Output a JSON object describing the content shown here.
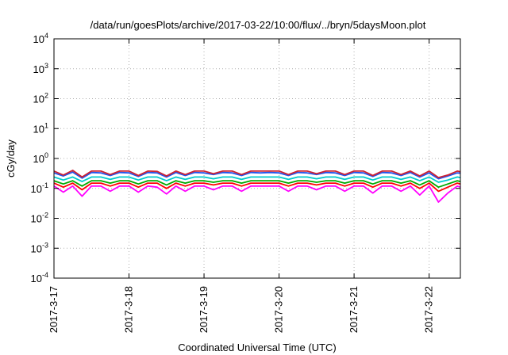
{
  "chart_data": {
    "type": "line",
    "title": "/data/run/goesPlots/archive/2017-03-22/10:00/flux/../bryn/5daysMoon.plot",
    "xlabel": "Coordinated Universal Time (UTC)",
    "ylabel": "cGy/day",
    "yscale": "log",
    "ylim": [
      0.0001,
      10000
    ],
    "y_ticks": [
      {
        "value": 0.0001,
        "base": "10",
        "exp": "-4"
      },
      {
        "value": 0.001,
        "base": "10",
        "exp": "-3"
      },
      {
        "value": 0.01,
        "base": "10",
        "exp": "-2"
      },
      {
        "value": 0.1,
        "base": "10",
        "exp": "-1"
      },
      {
        "value": 1,
        "base": "10",
        "exp": "0"
      },
      {
        "value": 10,
        "base": "10",
        "exp": "1"
      },
      {
        "value": 100,
        "base": "10",
        "exp": "2"
      },
      {
        "value": 1000,
        "base": "10",
        "exp": "3"
      },
      {
        "value": 10000,
        "base": "10",
        "exp": "4"
      }
    ],
    "xlim": [
      "2017-03-17T00:00",
      "2017-03-22T10:00"
    ],
    "x_ticks": [
      {
        "value": "2017-03-17T00:00",
        "label": "2017-3-17"
      },
      {
        "value": "2017-03-18T00:00",
        "label": "2017-3-18"
      },
      {
        "value": "2017-03-19T00:00",
        "label": "2017-3-19"
      },
      {
        "value": "2017-03-20T00:00",
        "label": "2017-3-20"
      },
      {
        "value": "2017-03-21T00:00",
        "label": "2017-3-21"
      },
      {
        "value": "2017-03-22T00:00",
        "label": "2017-3-22"
      }
    ],
    "grid": true,
    "legend": "none",
    "series": [
      {
        "color": "#ff00ff",
        "x": [
          "2017-03-17T00:00",
          "2017-03-17T03:00",
          "2017-03-17T06:00",
          "2017-03-17T09:00",
          "2017-03-17T12:00",
          "2017-03-17T15:00",
          "2017-03-17T18:00",
          "2017-03-17T21:00",
          "2017-03-18T00:00",
          "2017-03-18T03:00",
          "2017-03-18T06:00",
          "2017-03-18T09:00",
          "2017-03-18T12:00",
          "2017-03-18T15:00",
          "2017-03-18T18:00",
          "2017-03-18T21:00",
          "2017-03-19T00:00",
          "2017-03-19T03:00",
          "2017-03-19T06:00",
          "2017-03-19T09:00",
          "2017-03-19T12:00",
          "2017-03-19T15:00",
          "2017-03-19T18:00",
          "2017-03-19T21:00",
          "2017-03-20T00:00",
          "2017-03-20T03:00",
          "2017-03-20T06:00",
          "2017-03-20T09:00",
          "2017-03-20T12:00",
          "2017-03-20T15:00",
          "2017-03-20T18:00",
          "2017-03-20T21:00",
          "2017-03-21T00:00",
          "2017-03-21T03:00",
          "2017-03-21T06:00",
          "2017-03-21T09:00",
          "2017-03-21T12:00",
          "2017-03-21T15:00",
          "2017-03-21T18:00",
          "2017-03-21T21:00",
          "2017-03-22T00:00",
          "2017-03-22T03:00",
          "2017-03-22T06:00",
          "2017-03-22T09:00",
          "2017-03-22T10:00"
        ],
        "values": [
          0.12,
          0.075,
          0.12,
          0.055,
          0.12,
          0.12,
          0.08,
          0.12,
          0.12,
          0.075,
          0.12,
          0.11,
          0.065,
          0.12,
          0.08,
          0.12,
          0.12,
          0.09,
          0.12,
          0.12,
          0.08,
          0.12,
          0.12,
          0.12,
          0.12,
          0.08,
          0.12,
          0.12,
          0.09,
          0.12,
          0.12,
          0.08,
          0.12,
          0.12,
          0.07,
          0.12,
          0.12,
          0.08,
          0.12,
          0.06,
          0.12,
          0.035,
          0.07,
          0.12,
          0.11
        ]
      },
      {
        "color": "#ff0000",
        "x": [
          "2017-03-17T00:00",
          "2017-03-17T03:00",
          "2017-03-17T06:00",
          "2017-03-17T09:00",
          "2017-03-17T12:00",
          "2017-03-17T15:00",
          "2017-03-17T18:00",
          "2017-03-17T21:00",
          "2017-03-18T00:00",
          "2017-03-18T03:00",
          "2017-03-18T06:00",
          "2017-03-18T09:00",
          "2017-03-18T12:00",
          "2017-03-18T15:00",
          "2017-03-18T18:00",
          "2017-03-18T21:00",
          "2017-03-19T00:00",
          "2017-03-19T03:00",
          "2017-03-19T06:00",
          "2017-03-19T09:00",
          "2017-03-19T12:00",
          "2017-03-19T15:00",
          "2017-03-19T18:00",
          "2017-03-19T21:00",
          "2017-03-20T00:00",
          "2017-03-20T03:00",
          "2017-03-20T06:00",
          "2017-03-20T09:00",
          "2017-03-20T12:00",
          "2017-03-20T15:00",
          "2017-03-20T18:00",
          "2017-03-20T21:00",
          "2017-03-21T00:00",
          "2017-03-21T03:00",
          "2017-03-21T06:00",
          "2017-03-21T09:00",
          "2017-03-21T12:00",
          "2017-03-21T15:00",
          "2017-03-21T18:00",
          "2017-03-21T21:00",
          "2017-03-22T00:00",
          "2017-03-22T03:00",
          "2017-03-22T06:00",
          "2017-03-22T09:00",
          "2017-03-22T10:00"
        ],
        "values": [
          0.15,
          0.11,
          0.15,
          0.09,
          0.15,
          0.15,
          0.12,
          0.15,
          0.15,
          0.11,
          0.15,
          0.15,
          0.1,
          0.15,
          0.12,
          0.15,
          0.15,
          0.13,
          0.15,
          0.15,
          0.12,
          0.15,
          0.15,
          0.15,
          0.15,
          0.12,
          0.15,
          0.15,
          0.13,
          0.15,
          0.15,
          0.12,
          0.15,
          0.15,
          0.11,
          0.15,
          0.15,
          0.12,
          0.15,
          0.1,
          0.15,
          0.08,
          0.11,
          0.15,
          0.14
        ]
      },
      {
        "color": "#00aa00",
        "x": [
          "2017-03-17T00:00",
          "2017-03-17T03:00",
          "2017-03-17T06:00",
          "2017-03-17T09:00",
          "2017-03-17T12:00",
          "2017-03-17T15:00",
          "2017-03-17T18:00",
          "2017-03-17T21:00",
          "2017-03-18T00:00",
          "2017-03-18T03:00",
          "2017-03-18T06:00",
          "2017-03-18T09:00",
          "2017-03-18T12:00",
          "2017-03-18T15:00",
          "2017-03-18T18:00",
          "2017-03-18T21:00",
          "2017-03-19T00:00",
          "2017-03-19T03:00",
          "2017-03-19T06:00",
          "2017-03-19T09:00",
          "2017-03-19T12:00",
          "2017-03-19T15:00",
          "2017-03-19T18:00",
          "2017-03-19T21:00",
          "2017-03-20T00:00",
          "2017-03-20T03:00",
          "2017-03-20T06:00",
          "2017-03-20T09:00",
          "2017-03-20T12:00",
          "2017-03-20T15:00",
          "2017-03-20T18:00",
          "2017-03-20T21:00",
          "2017-03-21T00:00",
          "2017-03-21T03:00",
          "2017-03-21T06:00",
          "2017-03-21T09:00",
          "2017-03-21T12:00",
          "2017-03-21T15:00",
          "2017-03-21T18:00",
          "2017-03-21T21:00",
          "2017-03-22T00:00",
          "2017-03-22T03:00",
          "2017-03-22T06:00",
          "2017-03-22T09:00",
          "2017-03-22T10:00"
        ],
        "values": [
          0.18,
          0.14,
          0.18,
          0.12,
          0.18,
          0.18,
          0.15,
          0.18,
          0.18,
          0.14,
          0.18,
          0.18,
          0.13,
          0.18,
          0.15,
          0.18,
          0.18,
          0.16,
          0.18,
          0.18,
          0.15,
          0.18,
          0.18,
          0.18,
          0.18,
          0.15,
          0.18,
          0.18,
          0.16,
          0.18,
          0.18,
          0.15,
          0.18,
          0.18,
          0.14,
          0.18,
          0.18,
          0.15,
          0.18,
          0.13,
          0.18,
          0.11,
          0.14,
          0.18,
          0.17
        ]
      },
      {
        "color": "#00cccc",
        "x": [
          "2017-03-17T00:00",
          "2017-03-17T03:00",
          "2017-03-17T06:00",
          "2017-03-17T09:00",
          "2017-03-17T12:00",
          "2017-03-17T15:00",
          "2017-03-17T18:00",
          "2017-03-17T21:00",
          "2017-03-18T00:00",
          "2017-03-18T03:00",
          "2017-03-18T06:00",
          "2017-03-18T09:00",
          "2017-03-18T12:00",
          "2017-03-18T15:00",
          "2017-03-18T18:00",
          "2017-03-18T21:00",
          "2017-03-19T00:00",
          "2017-03-19T03:00",
          "2017-03-19T06:00",
          "2017-03-19T09:00",
          "2017-03-19T12:00",
          "2017-03-19T15:00",
          "2017-03-19T18:00",
          "2017-03-19T21:00",
          "2017-03-20T00:00",
          "2017-03-20T03:00",
          "2017-03-20T06:00",
          "2017-03-20T09:00",
          "2017-03-20T12:00",
          "2017-03-20T15:00",
          "2017-03-20T18:00",
          "2017-03-20T21:00",
          "2017-03-21T00:00",
          "2017-03-21T03:00",
          "2017-03-21T06:00",
          "2017-03-21T09:00",
          "2017-03-21T12:00",
          "2017-03-21T15:00",
          "2017-03-21T18:00",
          "2017-03-21T21:00",
          "2017-03-22T00:00",
          "2017-03-22T03:00",
          "2017-03-22T06:00",
          "2017-03-22T09:00",
          "2017-03-22T10:00"
        ],
        "values": [
          0.24,
          0.19,
          0.24,
          0.17,
          0.24,
          0.24,
          0.2,
          0.24,
          0.24,
          0.19,
          0.24,
          0.24,
          0.18,
          0.24,
          0.2,
          0.24,
          0.24,
          0.21,
          0.24,
          0.24,
          0.2,
          0.24,
          0.24,
          0.24,
          0.24,
          0.2,
          0.24,
          0.24,
          0.21,
          0.24,
          0.24,
          0.2,
          0.24,
          0.24,
          0.19,
          0.24,
          0.24,
          0.2,
          0.24,
          0.18,
          0.24,
          0.16,
          0.19,
          0.24,
          0.23
        ]
      },
      {
        "color": "#2255ee",
        "x": [
          "2017-03-17T00:00",
          "2017-03-17T03:00",
          "2017-03-17T06:00",
          "2017-03-17T09:00",
          "2017-03-17T12:00",
          "2017-03-17T15:00",
          "2017-03-17T18:00",
          "2017-03-17T21:00",
          "2017-03-18T00:00",
          "2017-03-18T03:00",
          "2017-03-18T06:00",
          "2017-03-18T09:00",
          "2017-03-18T12:00",
          "2017-03-18T15:00",
          "2017-03-18T18:00",
          "2017-03-18T21:00",
          "2017-03-19T00:00",
          "2017-03-19T03:00",
          "2017-03-19T06:00",
          "2017-03-19T09:00",
          "2017-03-19T12:00",
          "2017-03-19T15:00",
          "2017-03-19T18:00",
          "2017-03-19T21:00",
          "2017-03-20T00:00",
          "2017-03-20T03:00",
          "2017-03-20T06:00",
          "2017-03-20T09:00",
          "2017-03-20T12:00",
          "2017-03-20T15:00",
          "2017-03-20T18:00",
          "2017-03-20T21:00",
          "2017-03-21T00:00",
          "2017-03-21T03:00",
          "2017-03-21T06:00",
          "2017-03-21T09:00",
          "2017-03-21T12:00",
          "2017-03-21T15:00",
          "2017-03-21T18:00",
          "2017-03-21T21:00",
          "2017-03-22T00:00",
          "2017-03-22T03:00",
          "2017-03-22T06:00",
          "2017-03-22T09:00",
          "2017-03-22T10:00"
        ],
        "values": [
          0.33,
          0.26,
          0.35,
          0.22,
          0.34,
          0.33,
          0.27,
          0.34,
          0.33,
          0.25,
          0.34,
          0.33,
          0.24,
          0.34,
          0.27,
          0.34,
          0.33,
          0.29,
          0.34,
          0.33,
          0.27,
          0.34,
          0.33,
          0.34,
          0.33,
          0.27,
          0.34,
          0.33,
          0.29,
          0.34,
          0.33,
          0.27,
          0.34,
          0.33,
          0.25,
          0.34,
          0.33,
          0.27,
          0.34,
          0.24,
          0.33,
          0.21,
          0.26,
          0.33,
          0.32
        ]
      },
      {
        "color": "#cc2233",
        "x": [
          "2017-03-17T00:00",
          "2017-03-17T03:00",
          "2017-03-17T06:00",
          "2017-03-17T09:00",
          "2017-03-17T12:00",
          "2017-03-17T15:00",
          "2017-03-17T18:00",
          "2017-03-17T21:00",
          "2017-03-18T00:00",
          "2017-03-18T03:00",
          "2017-03-18T06:00",
          "2017-03-18T09:00",
          "2017-03-18T12:00",
          "2017-03-18T15:00",
          "2017-03-18T18:00",
          "2017-03-18T21:00",
          "2017-03-19T00:00",
          "2017-03-19T03:00",
          "2017-03-19T06:00",
          "2017-03-19T09:00",
          "2017-03-19T12:00",
          "2017-03-19T15:00",
          "2017-03-19T18:00",
          "2017-03-19T21:00",
          "2017-03-20T00:00",
          "2017-03-20T03:00",
          "2017-03-20T06:00",
          "2017-03-20T09:00",
          "2017-03-20T12:00",
          "2017-03-20T15:00",
          "2017-03-20T18:00",
          "2017-03-20T21:00",
          "2017-03-21T00:00",
          "2017-03-21T03:00",
          "2017-03-21T06:00",
          "2017-03-21T09:00",
          "2017-03-21T12:00",
          "2017-03-21T15:00",
          "2017-03-21T18:00",
          "2017-03-21T21:00",
          "2017-03-22T00:00",
          "2017-03-22T03:00",
          "2017-03-22T06:00",
          "2017-03-22T09:00",
          "2017-03-22T10:00"
        ],
        "values": [
          0.38,
          0.28,
          0.4,
          0.24,
          0.38,
          0.38,
          0.29,
          0.38,
          0.38,
          0.27,
          0.38,
          0.37,
          0.26,
          0.38,
          0.29,
          0.38,
          0.38,
          0.31,
          0.38,
          0.38,
          0.29,
          0.38,
          0.38,
          0.38,
          0.38,
          0.29,
          0.38,
          0.38,
          0.31,
          0.38,
          0.38,
          0.29,
          0.38,
          0.38,
          0.27,
          0.38,
          0.38,
          0.29,
          0.38,
          0.26,
          0.38,
          0.23,
          0.28,
          0.38,
          0.36
        ]
      }
    ]
  }
}
